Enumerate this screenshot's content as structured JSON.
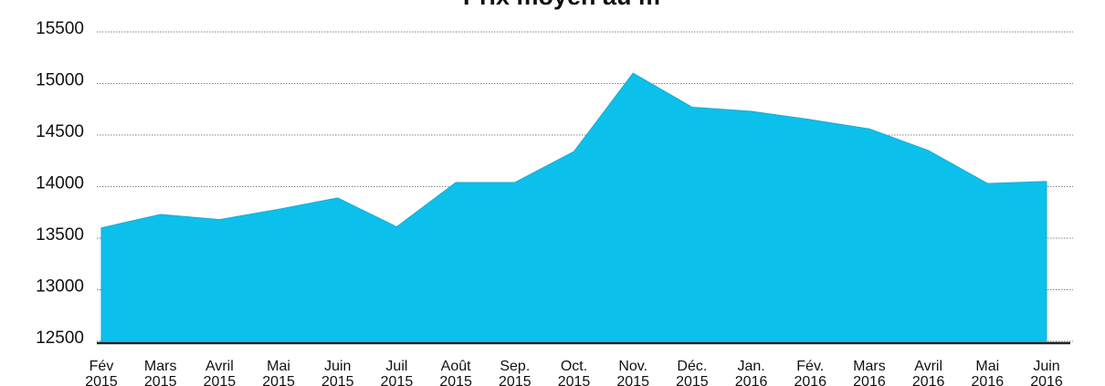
{
  "chart_data": {
    "type": "area",
    "title": "Prix moyen au m",
    "categories": [
      [
        "Fév",
        "2015"
      ],
      [
        "Mars",
        "2015"
      ],
      [
        "Avril",
        "2015"
      ],
      [
        "Mai",
        "2015"
      ],
      [
        "Juin",
        "2015"
      ],
      [
        "Juil",
        "2015"
      ],
      [
        "Août",
        "2015"
      ],
      [
        "Sep.",
        "2015"
      ],
      [
        "Oct.",
        "2015"
      ],
      [
        "Nov.",
        "2015"
      ],
      [
        "Déc.",
        "2015"
      ],
      [
        "Jan.",
        "2016"
      ],
      [
        "Fév.",
        "2016"
      ],
      [
        "Mars",
        "2016"
      ],
      [
        "Avril",
        "2016"
      ],
      [
        "Mai",
        "2016"
      ],
      [
        "Juin",
        "2016"
      ]
    ],
    "values": [
      13600,
      13730,
      13680,
      13780,
      13890,
      13610,
      14040,
      14040,
      14340,
      15100,
      14770,
      14730,
      14650,
      14560,
      14350,
      14030,
      14050
    ],
    "color": "#0cc0ec",
    "ylim": [
      12500,
      15500
    ],
    "yticks": [
      12500,
      13000,
      13500,
      14000,
      14500,
      15000,
      15500
    ],
    "grid": true
  }
}
